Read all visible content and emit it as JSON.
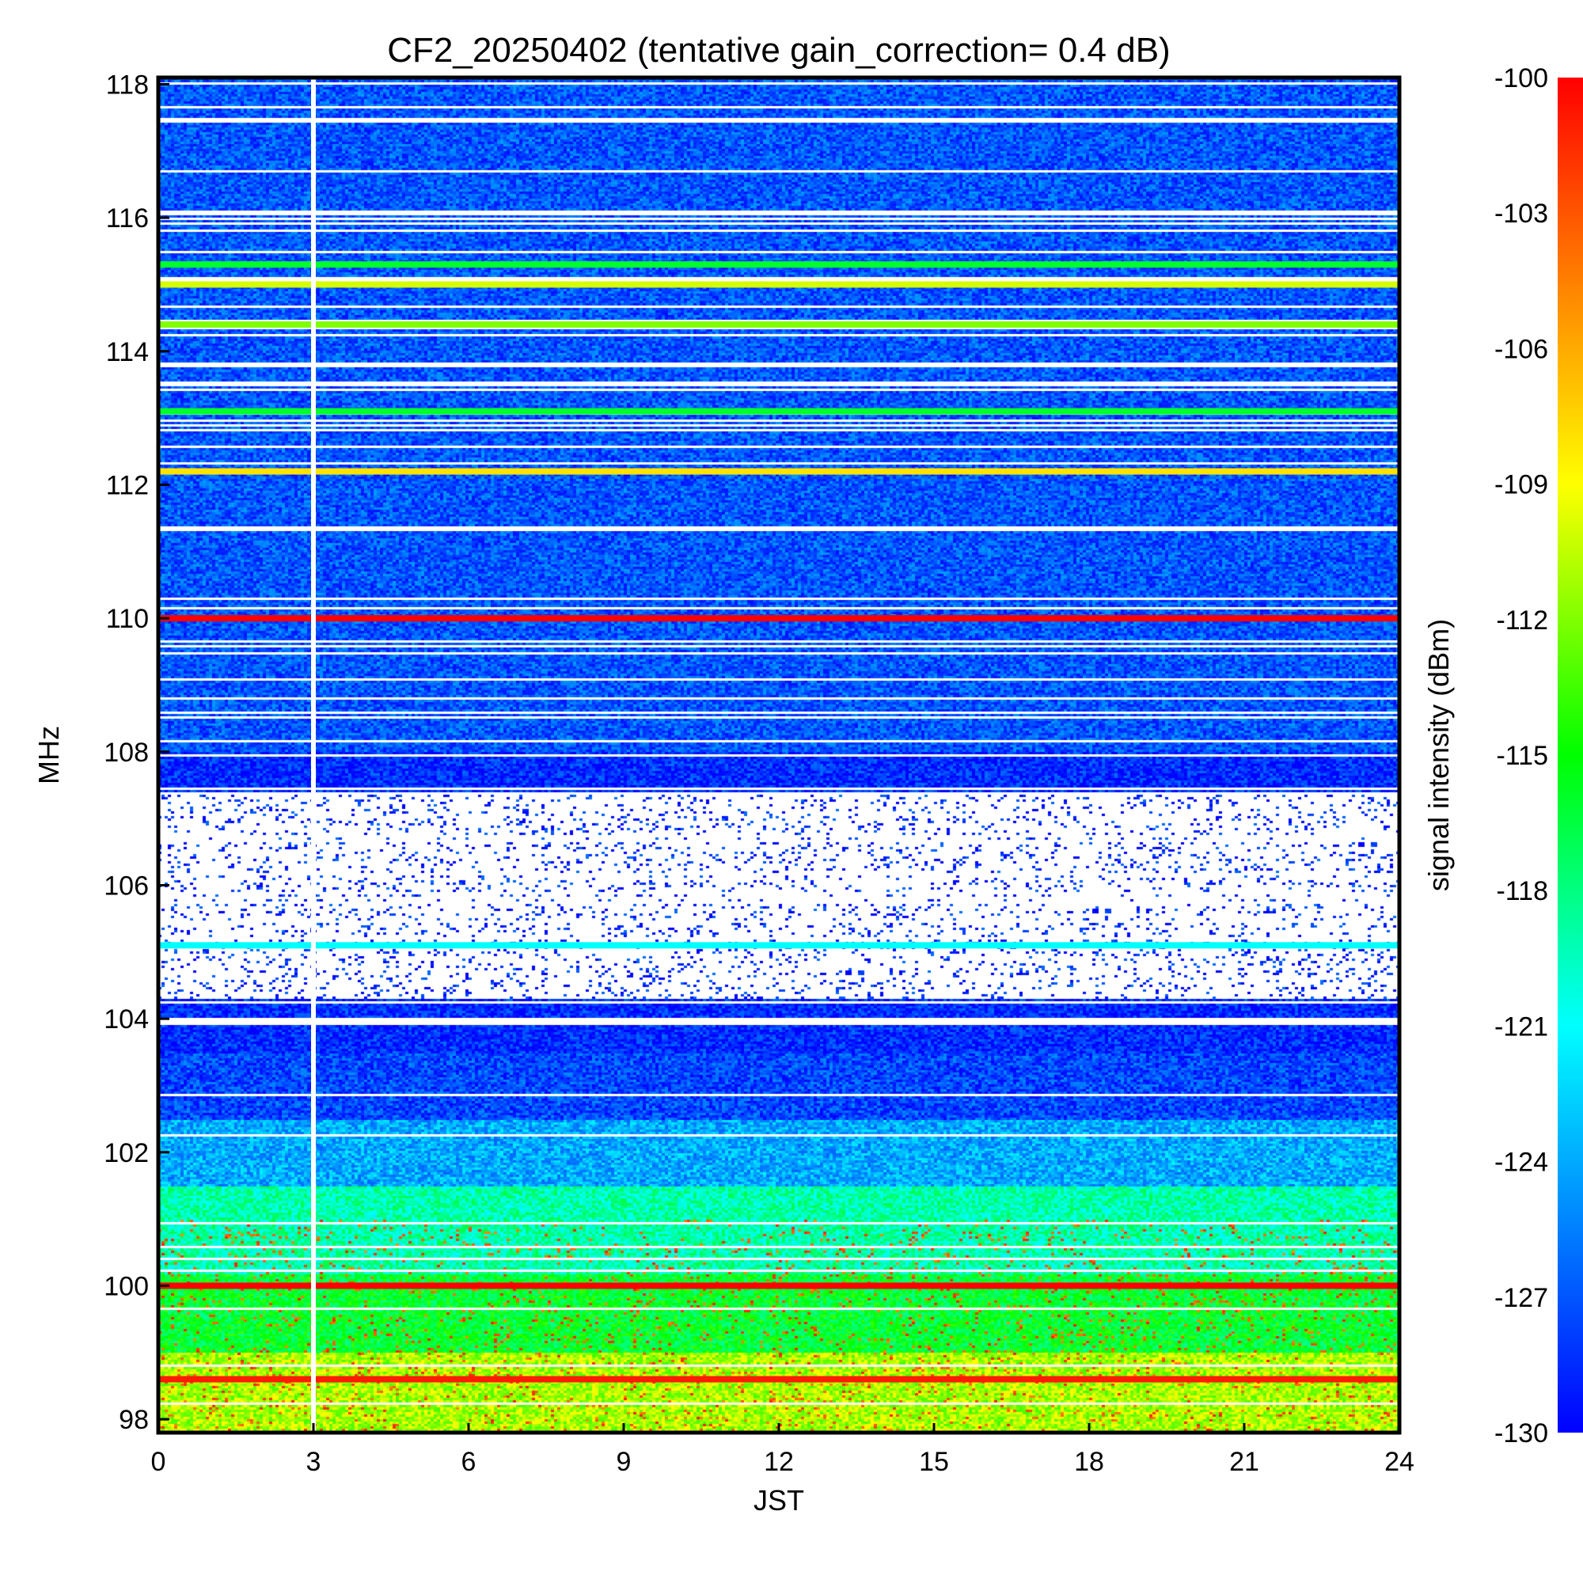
{
  "chart_data": {
    "type": "heatmap",
    "title": "CF2_20250402 (tentative gain_correction=  0.4 dB)",
    "xlabel": "JST",
    "ylabel": "MHz",
    "colorbar_label": "signal intensity (dBm)",
    "xlim": [
      0,
      24
    ],
    "ylim": [
      97.8,
      118.1
    ],
    "x_ticks": [
      0,
      3,
      6,
      9,
      12,
      15,
      18,
      21,
      24
    ],
    "x_tick_labels": [
      "0",
      "3",
      "6",
      "9",
      "12",
      "15",
      "18",
      "21",
      "24"
    ],
    "y_ticks": [
      98,
      100,
      102,
      104,
      106,
      108,
      110,
      112,
      114,
      116,
      118
    ],
    "y_tick_labels": [
      "98",
      "100",
      "102",
      "104",
      "106",
      "108",
      "110",
      "112",
      "114",
      "116",
      "118"
    ],
    "colorbar_range": [
      -130,
      -100
    ],
    "colorbar_ticks": [
      -100,
      -103,
      -106,
      -109,
      -112,
      -115,
      -118,
      -121,
      -124,
      -127,
      -130
    ],
    "colorbar_tick_labels": [
      "-100",
      "-103",
      "-106",
      "-109",
      "-112",
      "-115",
      "-118",
      "-121",
      "-124",
      "-127",
      "-130"
    ],
    "colormap": [
      "#0000ff",
      "#0055ff",
      "#00aaff",
      "#00ffff",
      "#00ff80",
      "#00ff00",
      "#80ff00",
      "#ffff00",
      "#ffaa00",
      "#ff5500",
      "#ff0000"
    ],
    "data_gap_jst": 3.0,
    "strong_carriers_mhz": [
      {
        "freq": 110.0,
        "dbm": -100
      },
      {
        "freq": 100.0,
        "dbm": -100
      },
      {
        "freq": 112.2,
        "dbm": -108
      },
      {
        "freq": 115.0,
        "dbm": -110
      },
      {
        "freq": 114.4,
        "dbm": -112
      },
      {
        "freq": 115.3,
        "dbm": -116
      },
      {
        "freq": 113.1,
        "dbm": -116
      },
      {
        "freq": 105.1,
        "dbm": -121
      },
      {
        "freq": 98.6,
        "dbm": -101
      }
    ]
  }
}
